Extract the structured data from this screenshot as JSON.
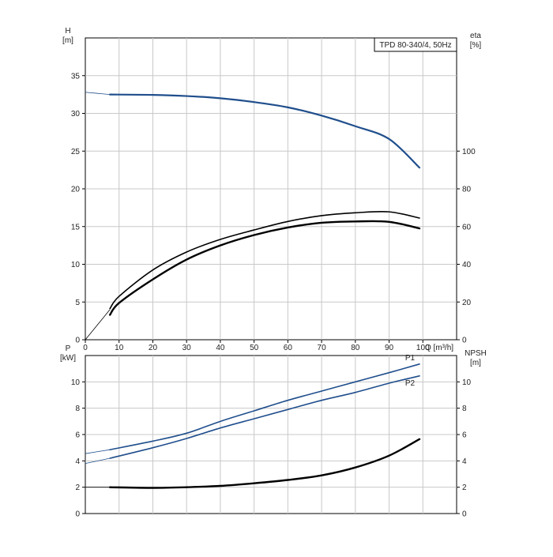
{
  "chart_data": [
    {
      "type": "line",
      "panel": "upper",
      "title": "TPD 80-340/4, 50Hz",
      "xlabel": "Q [m³/h]",
      "x_axis": {
        "min": 0,
        "max": 110,
        "ticks": [
          0,
          10,
          20,
          30,
          40,
          50,
          60,
          70,
          80,
          90,
          100
        ]
      },
      "left_axis": {
        "label": [
          "H",
          "[m]"
        ],
        "min": 0,
        "max": 40,
        "ticks": [
          0,
          5,
          10,
          15,
          20,
          25,
          30,
          35
        ]
      },
      "right_axis": {
        "label": [
          "eta",
          "[%]"
        ],
        "min": 0,
        "max": 160,
        "ticks": [
          0,
          20,
          40,
          60,
          80,
          100
        ]
      },
      "grid": true,
      "series": [
        {
          "axis": "left",
          "color": "#1f4e8c",
          "extension": [
            [
              0,
              32.8
            ],
            [
              7.3,
              32.5
            ]
          ],
          "points": [
            [
              7.3,
              32.5
            ],
            [
              20,
              32.45
            ],
            [
              30,
              32.3
            ],
            [
              40,
              32.0
            ],
            [
              50,
              31.5
            ],
            [
              60,
              30.8
            ],
            [
              70,
              29.7
            ],
            [
              80,
              28.3
            ],
            [
              90,
              26.6
            ],
            [
              99,
              22.8
            ]
          ]
        },
        {
          "axis": "right",
          "color": "#000000",
          "extension": [
            [
              0,
              0
            ],
            [
              7.3,
              16
            ]
          ],
          "points": [
            [
              7.3,
              16.5
            ],
            [
              10,
              23
            ],
            [
              20,
              37
            ],
            [
              30,
              46.5
            ],
            [
              40,
              53.2
            ],
            [
              50,
              58.2
            ],
            [
              60,
              62.7
            ],
            [
              70,
              65.8
            ],
            [
              80,
              67.3
            ],
            [
              90,
              67.8
            ],
            [
              99,
              64.5
            ]
          ]
        },
        {
          "axis": "right",
          "color": "#000000",
          "thick": true,
          "points": [
            [
              7.3,
              13.2
            ],
            [
              10,
              19.5
            ],
            [
              20,
              32
            ],
            [
              30,
              42.5
            ],
            [
              40,
              50
            ],
            [
              50,
              55.5
            ],
            [
              60,
              59.5
            ],
            [
              70,
              62
            ],
            [
              80,
              62.7
            ],
            [
              90,
              62.5
            ],
            [
              99,
              59
            ]
          ]
        }
      ]
    },
    {
      "type": "line",
      "panel": "lower",
      "x_axis": {
        "min": 0,
        "max": 110
      },
      "left_axis": {
        "label": [
          "P",
          "[kW]"
        ],
        "min": 0,
        "max": 12,
        "ticks": [
          0,
          2,
          4,
          6,
          8,
          10
        ]
      },
      "right_axis": {
        "label": [
          "NPSH",
          "[m]"
        ],
        "min": 0,
        "max": 12,
        "ticks": [
          0,
          2,
          4,
          6,
          8,
          10
        ]
      },
      "grid": true,
      "series": [
        {
          "name": "P1",
          "axis": "left",
          "color": "#1f4e8c",
          "extension": [
            [
              0,
              4.55
            ],
            [
              7.3,
              4.85
            ]
          ],
          "points": [
            [
              7.3,
              4.85
            ],
            [
              20,
              5.5
            ],
            [
              30,
              6.1
            ],
            [
              40,
              7.0
            ],
            [
              50,
              7.8
            ],
            [
              60,
              8.6
            ],
            [
              70,
              9.3
            ],
            [
              80,
              10.0
            ],
            [
              90,
              10.7
            ],
            [
              99,
              11.35
            ]
          ]
        },
        {
          "name": "P2",
          "axis": "left",
          "color": "#1f4e8c",
          "extension": [
            [
              0,
              3.8
            ],
            [
              7.3,
              4.2
            ]
          ],
          "points": [
            [
              7.3,
              4.2
            ],
            [
              20,
              5.0
            ],
            [
              30,
              5.7
            ],
            [
              40,
              6.5
            ],
            [
              50,
              7.2
            ],
            [
              60,
              7.9
            ],
            [
              70,
              8.6
            ],
            [
              80,
              9.2
            ],
            [
              90,
              9.9
            ],
            [
              99,
              10.45
            ]
          ]
        },
        {
          "name": "",
          "axis": "right",
          "color": "#000000",
          "thick": true,
          "extension": [
            [
              0,
              2.0
            ],
            [
              7.3,
              2.0
            ]
          ],
          "points": [
            [
              7.3,
              2.0
            ],
            [
              20,
              1.95
            ],
            [
              30,
              2.0
            ],
            [
              40,
              2.1
            ],
            [
              50,
              2.3
            ],
            [
              60,
              2.55
            ],
            [
              70,
              2.9
            ],
            [
              80,
              3.5
            ],
            [
              90,
              4.4
            ],
            [
              99,
              5.65
            ]
          ]
        }
      ]
    }
  ]
}
